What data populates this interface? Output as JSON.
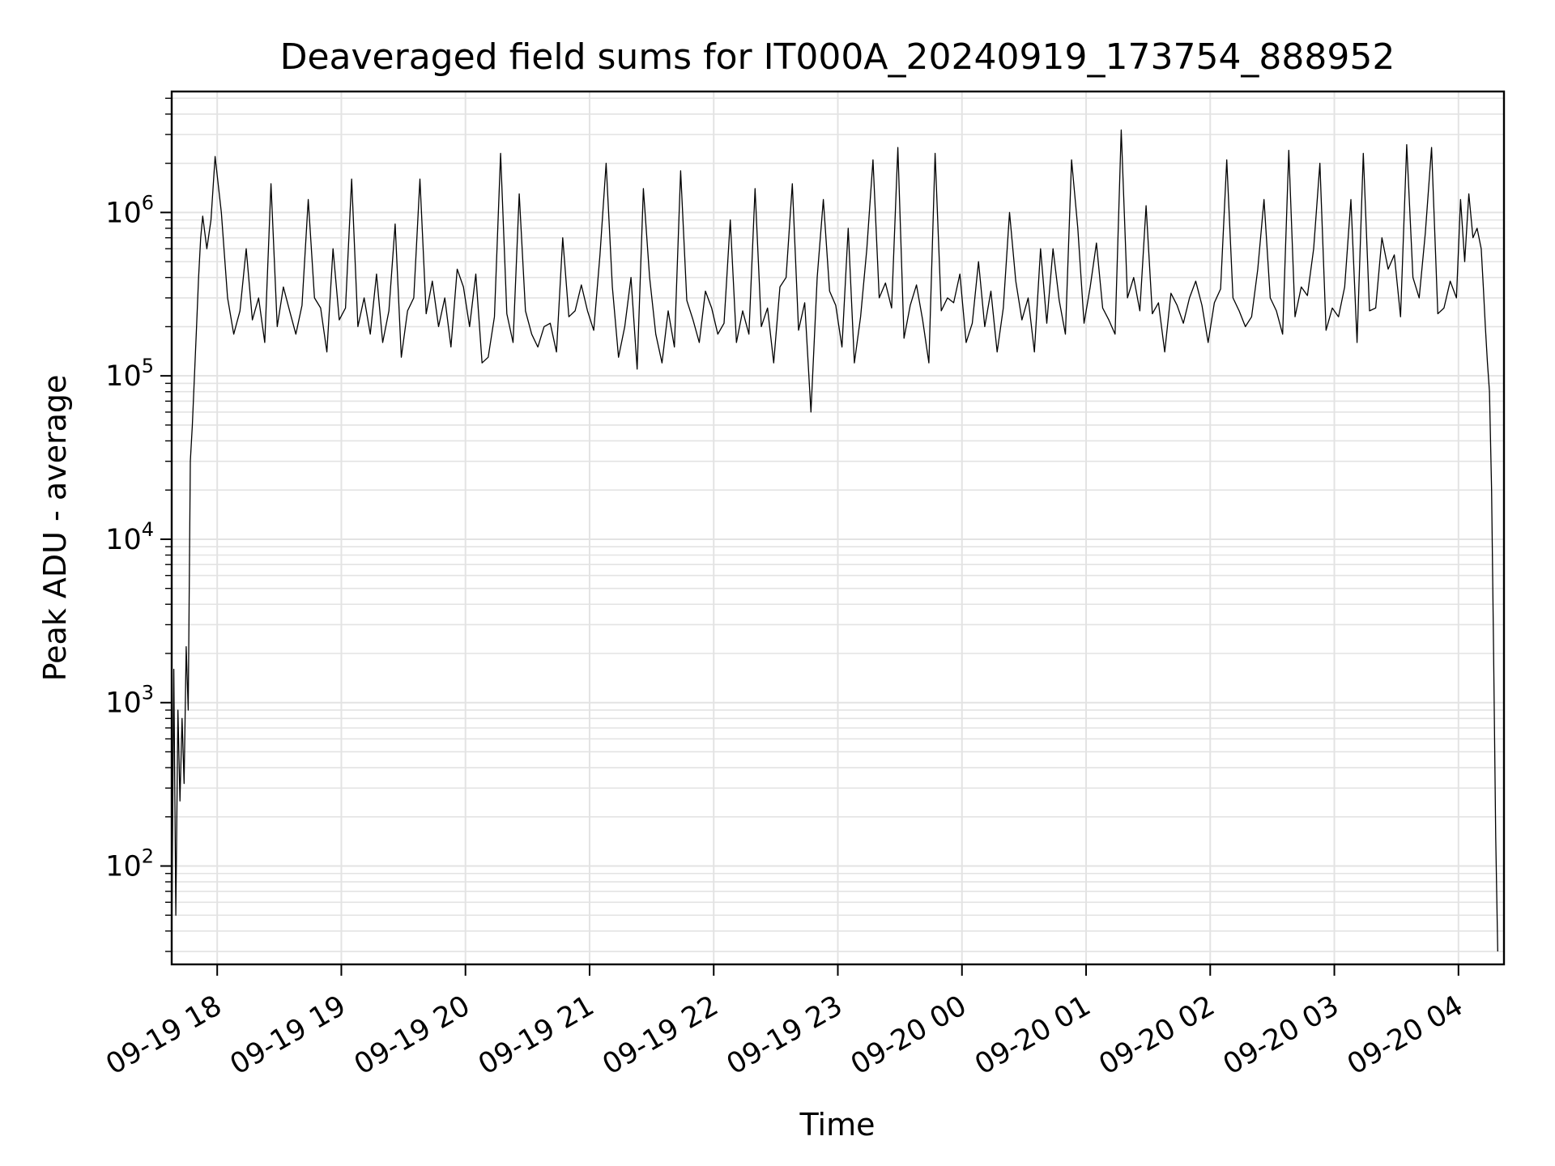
{
  "chart_data": {
    "type": "line",
    "title": "Deaveraged field sums for IT000A_20240919_173754_888952",
    "xlabel": "Time",
    "ylabel": "Peak ADU - average",
    "yscale": "log",
    "ylim": [
      25,
      5500000
    ],
    "xlim": [
      "2024-09-19 17:38",
      "2024-09-20 04:22"
    ],
    "grid": true,
    "line_color": "#000000",
    "grid_color": "#e3e3e3",
    "x_ticks": [
      {
        "value": "2024-09-19 18:00",
        "label": "09-19 18"
      },
      {
        "value": "2024-09-19 19:00",
        "label": "09-19 19"
      },
      {
        "value": "2024-09-19 20:00",
        "label": "09-19 20"
      },
      {
        "value": "2024-09-19 21:00",
        "label": "09-19 21"
      },
      {
        "value": "2024-09-19 22:00",
        "label": "09-19 22"
      },
      {
        "value": "2024-09-19 23:00",
        "label": "09-19 23"
      },
      {
        "value": "2024-09-20 00:00",
        "label": "09-20 00"
      },
      {
        "value": "2024-09-20 01:00",
        "label": "09-20 01"
      },
      {
        "value": "2024-09-20 02:00",
        "label": "09-20 02"
      },
      {
        "value": "2024-09-20 03:00",
        "label": "09-20 03"
      },
      {
        "value": "2024-09-20 04:00",
        "label": "09-20 04"
      }
    ],
    "y_ticks": [
      {
        "value": 100,
        "base": "10",
        "exp": "2"
      },
      {
        "value": 1000,
        "base": "10",
        "exp": "3"
      },
      {
        "value": 10000,
        "base": "10",
        "exp": "4"
      },
      {
        "value": 100000,
        "base": "10",
        "exp": "5"
      },
      {
        "value": 1000000,
        "base": "10",
        "exp": "6"
      }
    ],
    "series": [
      {
        "x": [
          "2024-09-19 17:38",
          "2024-09-19 17:39",
          "2024-09-19 17:40",
          "2024-09-19 17:41",
          "2024-09-19 17:42",
          "2024-09-19 17:43",
          "2024-09-19 17:44",
          "2024-09-19 17:45",
          "2024-09-19 17:46",
          "2024-09-19 17:47",
          "2024-09-19 17:48",
          "2024-09-19 17:49",
          "2024-09-19 17:50",
          "2024-09-19 17:51",
          "2024-09-19 17:52",
          "2024-09-19 17:53",
          "2024-09-19 17:55",
          "2024-09-19 17:57",
          "2024-09-19 17:59",
          "2024-09-19 18:02",
          "2024-09-19 18:05",
          "2024-09-19 18:08",
          "2024-09-19 18:11",
          "2024-09-19 18:14",
          "2024-09-19 18:17",
          "2024-09-19 18:20",
          "2024-09-19 18:23",
          "2024-09-19 18:26",
          "2024-09-19 18:29",
          "2024-09-19 18:32",
          "2024-09-19 18:35",
          "2024-09-19 18:38",
          "2024-09-19 18:41",
          "2024-09-19 18:44",
          "2024-09-19 18:47",
          "2024-09-19 18:50",
          "2024-09-19 18:53",
          "2024-09-19 18:56",
          "2024-09-19 18:59",
          "2024-09-19 19:02",
          "2024-09-19 19:05",
          "2024-09-19 19:08",
          "2024-09-19 19:11",
          "2024-09-19 19:14",
          "2024-09-19 19:17",
          "2024-09-19 19:20",
          "2024-09-19 19:23",
          "2024-09-19 19:26",
          "2024-09-19 19:29",
          "2024-09-19 19:32",
          "2024-09-19 19:35",
          "2024-09-19 19:38",
          "2024-09-19 19:41",
          "2024-09-19 19:44",
          "2024-09-19 19:47",
          "2024-09-19 19:50",
          "2024-09-19 19:53",
          "2024-09-19 19:56",
          "2024-09-19 19:59",
          "2024-09-19 20:02",
          "2024-09-19 20:05",
          "2024-09-19 20:08",
          "2024-09-19 20:11",
          "2024-09-19 20:14",
          "2024-09-19 20:17",
          "2024-09-19 20:20",
          "2024-09-19 20:23",
          "2024-09-19 20:26",
          "2024-09-19 20:29",
          "2024-09-19 20:32",
          "2024-09-19 20:35",
          "2024-09-19 20:38",
          "2024-09-19 20:41",
          "2024-09-19 20:44",
          "2024-09-19 20:47",
          "2024-09-19 20:50",
          "2024-09-19 20:53",
          "2024-09-19 20:56",
          "2024-09-19 20:59",
          "2024-09-19 21:02",
          "2024-09-19 21:05",
          "2024-09-19 21:08",
          "2024-09-19 21:11",
          "2024-09-19 21:14",
          "2024-09-19 21:17",
          "2024-09-19 21:20",
          "2024-09-19 21:23",
          "2024-09-19 21:26",
          "2024-09-19 21:29",
          "2024-09-19 21:32",
          "2024-09-19 21:35",
          "2024-09-19 21:38",
          "2024-09-19 21:41",
          "2024-09-19 21:44",
          "2024-09-19 21:47",
          "2024-09-19 21:50",
          "2024-09-19 21:53",
          "2024-09-19 21:56",
          "2024-09-19 21:59",
          "2024-09-19 22:02",
          "2024-09-19 22:05",
          "2024-09-19 22:08",
          "2024-09-19 22:11",
          "2024-09-19 22:14",
          "2024-09-19 22:17",
          "2024-09-19 22:20",
          "2024-09-19 22:23",
          "2024-09-19 22:26",
          "2024-09-19 22:29",
          "2024-09-19 22:32",
          "2024-09-19 22:35",
          "2024-09-19 22:38",
          "2024-09-19 22:41",
          "2024-09-19 22:44",
          "2024-09-19 22:47",
          "2024-09-19 22:50",
          "2024-09-19 22:53",
          "2024-09-19 22:56",
          "2024-09-19 22:59",
          "2024-09-19 23:02",
          "2024-09-19 23:05",
          "2024-09-19 23:08",
          "2024-09-19 23:11",
          "2024-09-19 23:14",
          "2024-09-19 23:17",
          "2024-09-19 23:20",
          "2024-09-19 23:23",
          "2024-09-19 23:26",
          "2024-09-19 23:29",
          "2024-09-19 23:32",
          "2024-09-19 23:35",
          "2024-09-19 23:38",
          "2024-09-19 23:41",
          "2024-09-19 23:44",
          "2024-09-19 23:47",
          "2024-09-19 23:50",
          "2024-09-19 23:53",
          "2024-09-19 23:56",
          "2024-09-19 23:59",
          "2024-09-20 00:02",
          "2024-09-20 00:05",
          "2024-09-20 00:08",
          "2024-09-20 00:11",
          "2024-09-20 00:14",
          "2024-09-20 00:17",
          "2024-09-20 00:20",
          "2024-09-20 00:23",
          "2024-09-20 00:26",
          "2024-09-20 00:29",
          "2024-09-20 00:32",
          "2024-09-20 00:35",
          "2024-09-20 00:38",
          "2024-09-20 00:41",
          "2024-09-20 00:44",
          "2024-09-20 00:47",
          "2024-09-20 00:50",
          "2024-09-20 00:53",
          "2024-09-20 00:56",
          "2024-09-20 00:59",
          "2024-09-20 01:02",
          "2024-09-20 01:05",
          "2024-09-20 01:08",
          "2024-09-20 01:11",
          "2024-09-20 01:14",
          "2024-09-20 01:17",
          "2024-09-20 01:20",
          "2024-09-20 01:23",
          "2024-09-20 01:26",
          "2024-09-20 01:29",
          "2024-09-20 01:32",
          "2024-09-20 01:35",
          "2024-09-20 01:38",
          "2024-09-20 01:41",
          "2024-09-20 01:44",
          "2024-09-20 01:47",
          "2024-09-20 01:50",
          "2024-09-20 01:53",
          "2024-09-20 01:56",
          "2024-09-20 01:59",
          "2024-09-20 02:02",
          "2024-09-20 02:05",
          "2024-09-20 02:08",
          "2024-09-20 02:11",
          "2024-09-20 02:14",
          "2024-09-20 02:17",
          "2024-09-20 02:20",
          "2024-09-20 02:23",
          "2024-09-20 02:26",
          "2024-09-20 02:29",
          "2024-09-20 02:32",
          "2024-09-20 02:35",
          "2024-09-20 02:38",
          "2024-09-20 02:41",
          "2024-09-20 02:44",
          "2024-09-20 02:47",
          "2024-09-20 02:50",
          "2024-09-20 02:53",
          "2024-09-20 02:56",
          "2024-09-20 02:59",
          "2024-09-20 03:02",
          "2024-09-20 03:05",
          "2024-09-20 03:08",
          "2024-09-20 03:11",
          "2024-09-20 03:14",
          "2024-09-20 03:17",
          "2024-09-20 03:20",
          "2024-09-20 03:23",
          "2024-09-20 03:26",
          "2024-09-20 03:29",
          "2024-09-20 03:32",
          "2024-09-20 03:35",
          "2024-09-20 03:38",
          "2024-09-20 03:41",
          "2024-09-20 03:44",
          "2024-09-20 03:47",
          "2024-09-20 03:50",
          "2024-09-20 03:53",
          "2024-09-20 03:56",
          "2024-09-20 03:59",
          "2024-09-20 04:01",
          "2024-09-20 04:03",
          "2024-09-20 04:05",
          "2024-09-20 04:07",
          "2024-09-20 04:09",
          "2024-09-20 04:11",
          "2024-09-20 04:12",
          "2024-09-20 04:13",
          "2024-09-20 04:14",
          "2024-09-20 04:15",
          "2024-09-20 04:16",
          "2024-09-20 04:17",
          "2024-09-20 04:18",
          "2024-09-20 04:19"
        ],
        "values": [
          30,
          1600,
          50,
          900,
          250,
          800,
          320,
          2200,
          900,
          30000,
          50000,
          100000,
          200000,
          400000,
          700000,
          950000,
          600000,
          900000,
          2200000,
          1000000,
          300000,
          180000,
          250000,
          600000,
          220000,
          300000,
          160000,
          1500000,
          200000,
          350000,
          250000,
          180000,
          270000,
          1200000,
          300000,
          260000,
          140000,
          600000,
          220000,
          260000,
          1600000,
          200000,
          300000,
          180000,
          420000,
          160000,
          250000,
          850000,
          130000,
          250000,
          300000,
          1600000,
          240000,
          380000,
          200000,
          300000,
          150000,
          450000,
          350000,
          200000,
          420000,
          120000,
          130000,
          230000,
          2300000,
          240000,
          160000,
          1300000,
          250000,
          180000,
          150000,
          200000,
          210000,
          140000,
          700000,
          230000,
          250000,
          360000,
          250000,
          190000,
          550000,
          2000000,
          350000,
          130000,
          200000,
          400000,
          110000,
          1400000,
          400000,
          180000,
          120000,
          250000,
          150000,
          1800000,
          290000,
          220000,
          160000,
          330000,
          260000,
          180000,
          210000,
          900000,
          160000,
          250000,
          180000,
          1400000,
          200000,
          260000,
          120000,
          350000,
          400000,
          1500000,
          190000,
          280000,
          60000,
          400000,
          1200000,
          330000,
          270000,
          150000,
          800000,
          120000,
          230000,
          600000,
          2100000,
          300000,
          370000,
          260000,
          2500000,
          170000,
          270000,
          360000,
          220000,
          120000,
          2300000,
          250000,
          300000,
          280000,
          420000,
          160000,
          210000,
          500000,
          200000,
          330000,
          140000,
          260000,
          1000000,
          380000,
          220000,
          300000,
          140000,
          600000,
          210000,
          600000,
          290000,
          180000,
          2100000,
          800000,
          210000,
          350000,
          650000,
          260000,
          220000,
          180000,
          3200000,
          300000,
          400000,
          250000,
          1100000,
          240000,
          280000,
          140000,
          320000,
          270000,
          210000,
          300000,
          380000,
          270000,
          160000,
          280000,
          340000,
          2100000,
          300000,
          250000,
          200000,
          230000,
          450000,
          1200000,
          300000,
          250000,
          180000,
          2400000,
          230000,
          350000,
          310000,
          600000,
          2000000,
          190000,
          260000,
          230000,
          350000,
          1200000,
          160000,
          2300000,
          250000,
          260000,
          700000,
          450000,
          550000,
          230000,
          2600000,
          400000,
          300000,
          750000,
          2500000,
          240000,
          260000,
          380000,
          300000,
          1200000,
          500000,
          1300000,
          700000,
          800000,
          600000,
          350000,
          200000,
          120000,
          80000,
          20000,
          2000,
          150,
          30
        ],
        "series_note": ""
      }
    ]
  }
}
